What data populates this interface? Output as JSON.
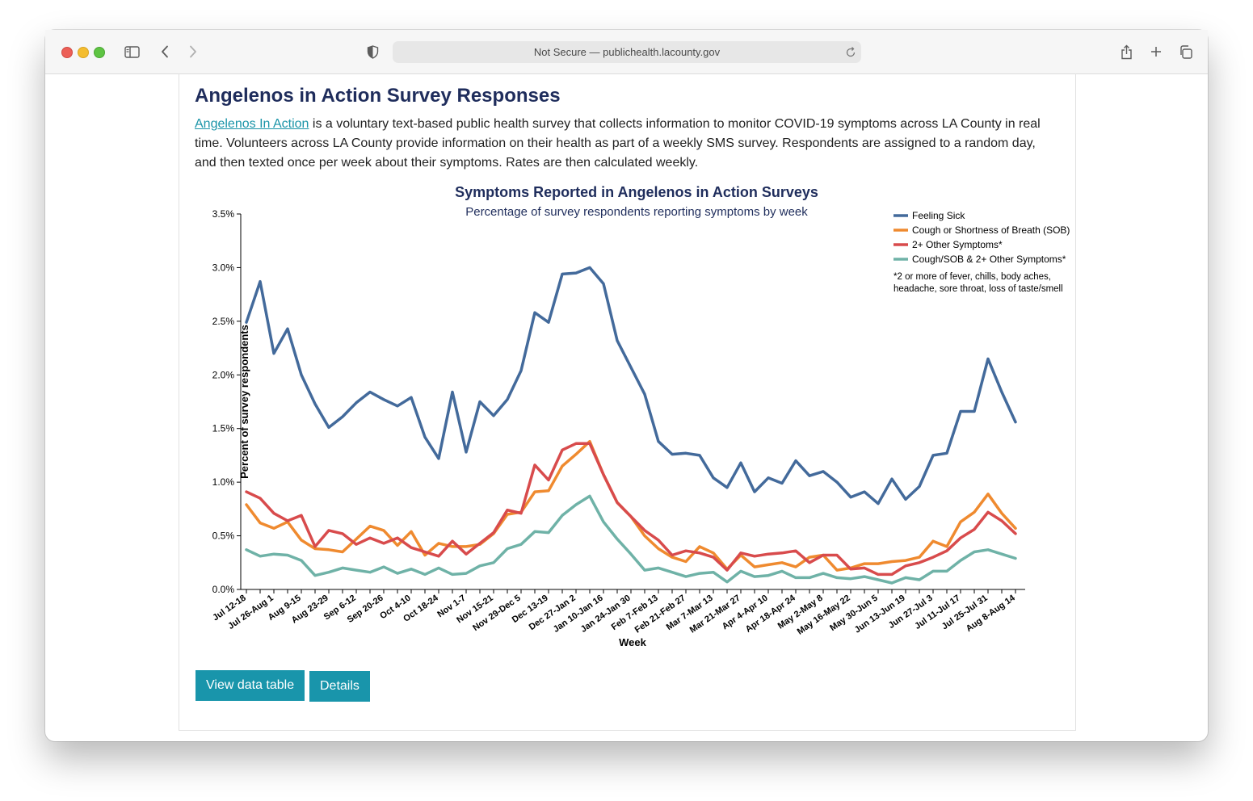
{
  "browser": {
    "address": "Not Secure — publichealth.lacounty.gov"
  },
  "page": {
    "heading": "Angelenos in Action Survey Responses",
    "intro_link": "Angelenos In Action",
    "intro_text": " is a voluntary text-based public health survey that collects information to monitor COVID-19 symptoms across LA County in real time. Volunteers across LA County provide information on their health as part of a weekly SMS survey. Respondents are assigned to a random day, and then texted once per week about their symptoms. Rates are then calculated weekly.",
    "buttons": {
      "view_table": "View data table",
      "details": "Details"
    }
  },
  "chart_data": {
    "type": "line",
    "title": "Symptoms Reported in Angelenos in Action Surveys",
    "subtitle": "Percentage of survey respondents reporting symptoms by week",
    "xlabel": "Week",
    "ylabel": "Percent of survey respondents",
    "ylim": [
      0,
      3.5
    ],
    "yticks": [
      "0.0%",
      "0.5%",
      "1.0%",
      "1.5%",
      "2.0%",
      "2.5%",
      "3.0%",
      "3.5%"
    ],
    "xtick_labels": [
      "Jul 12-18",
      "Jul 26-Aug 1",
      "Aug 9-15",
      "Aug 23-29",
      "Sep 6-12",
      "Sep 20-26",
      "Oct 4-10",
      "Oct 18-24",
      "Nov 1-7",
      "Nov 15-21",
      "Nov 29-Dec 5",
      "Dec 13-19",
      "Dec 27-Jan 2",
      "Jan 10-Jan 16",
      "Jan 24-Jan 30",
      "Feb 7-Feb 13",
      "Feb 21-Feb 27",
      "Mar 7-Mar 13",
      "Mar 21-Mar 27",
      "Apr 4-Apr 10",
      "Apr 18-Apr 24",
      "May 2-May 8",
      "May 16-May 22",
      "May 30-Jun 5",
      "Jun 13-Jun 19",
      "Jun 27-Jul 3",
      "Jul 11-Jul 17",
      "Jul 25-Jul 31",
      "Aug 8-Aug 14"
    ],
    "legend_position": "top-right",
    "legend_note": "*2 or more of fever, chills, body aches, headache, sore throat, loss of taste/smell",
    "grid": false,
    "series": [
      {
        "name": "Feeling Sick",
        "color": "#436a9b",
        "values": [
          2.49,
          2.87,
          2.2,
          2.43,
          2.0,
          1.73,
          1.51,
          1.61,
          1.74,
          1.84,
          1.77,
          1.71,
          1.79,
          1.42,
          1.22,
          1.84,
          1.28,
          1.75,
          1.62,
          1.77,
          2.04,
          2.58,
          2.49,
          2.94,
          2.95,
          3.0,
          2.85,
          2.32,
          2.07,
          1.82,
          1.38,
          1.26,
          1.27,
          1.25,
          1.04,
          0.95,
          1.18,
          0.91,
          1.04,
          0.99,
          1.2,
          1.06,
          1.1,
          1.0,
          0.86,
          0.91,
          0.8,
          1.03,
          0.84,
          0.96,
          1.25,
          1.27,
          1.66,
          1.66,
          2.15,
          1.84,
          1.56
        ]
      },
      {
        "name": "Cough or Shortness of Breath (SOB)",
        "color": "#ef8a2f",
        "values": [
          0.79,
          0.62,
          0.57,
          0.63,
          0.46,
          0.38,
          0.37,
          0.35,
          0.47,
          0.59,
          0.55,
          0.41,
          0.54,
          0.32,
          0.43,
          0.4,
          0.4,
          0.42,
          0.52,
          0.7,
          0.72,
          0.91,
          0.92,
          1.15,
          1.26,
          1.38,
          1.07,
          0.81,
          0.68,
          0.5,
          0.38,
          0.3,
          0.26,
          0.4,
          0.34,
          0.19,
          0.32,
          0.21,
          0.23,
          0.25,
          0.21,
          0.3,
          0.32,
          0.18,
          0.2,
          0.24,
          0.24,
          0.26,
          0.27,
          0.3,
          0.45,
          0.4,
          0.63,
          0.72,
          0.89,
          0.71,
          0.57
        ]
      },
      {
        "name": "2+ Other Symptoms*",
        "color": "#d84b4c",
        "values": [
          0.91,
          0.85,
          0.71,
          0.64,
          0.69,
          0.4,
          0.55,
          0.52,
          0.42,
          0.48,
          0.43,
          0.48,
          0.39,
          0.35,
          0.31,
          0.45,
          0.33,
          0.43,
          0.53,
          0.74,
          0.71,
          1.16,
          1.02,
          1.3,
          1.36,
          1.36,
          1.07,
          0.81,
          0.68,
          0.55,
          0.46,
          0.32,
          0.36,
          0.34,
          0.3,
          0.18,
          0.34,
          0.31,
          0.33,
          0.34,
          0.36,
          0.25,
          0.32,
          0.32,
          0.19,
          0.2,
          0.14,
          0.14,
          0.22,
          0.25,
          0.3,
          0.36,
          0.48,
          0.56,
          0.72,
          0.64,
          0.52
        ]
      },
      {
        "name": "Cough/SOB & 2+ Other Symptoms*",
        "color": "#6fb2a7",
        "values": [
          0.37,
          0.31,
          0.33,
          0.32,
          0.27,
          0.13,
          0.16,
          0.2,
          0.18,
          0.16,
          0.21,
          0.15,
          0.19,
          0.14,
          0.2,
          0.14,
          0.15,
          0.22,
          0.25,
          0.38,
          0.42,
          0.54,
          0.53,
          0.69,
          0.79,
          0.87,
          0.63,
          0.47,
          0.33,
          0.18,
          0.2,
          0.16,
          0.12,
          0.15,
          0.16,
          0.07,
          0.17,
          0.12,
          0.13,
          0.17,
          0.11,
          0.11,
          0.15,
          0.11,
          0.1,
          0.12,
          0.09,
          0.06,
          0.11,
          0.09,
          0.17,
          0.17,
          0.27,
          0.35,
          0.37,
          0.33,
          0.29
        ]
      }
    ]
  }
}
